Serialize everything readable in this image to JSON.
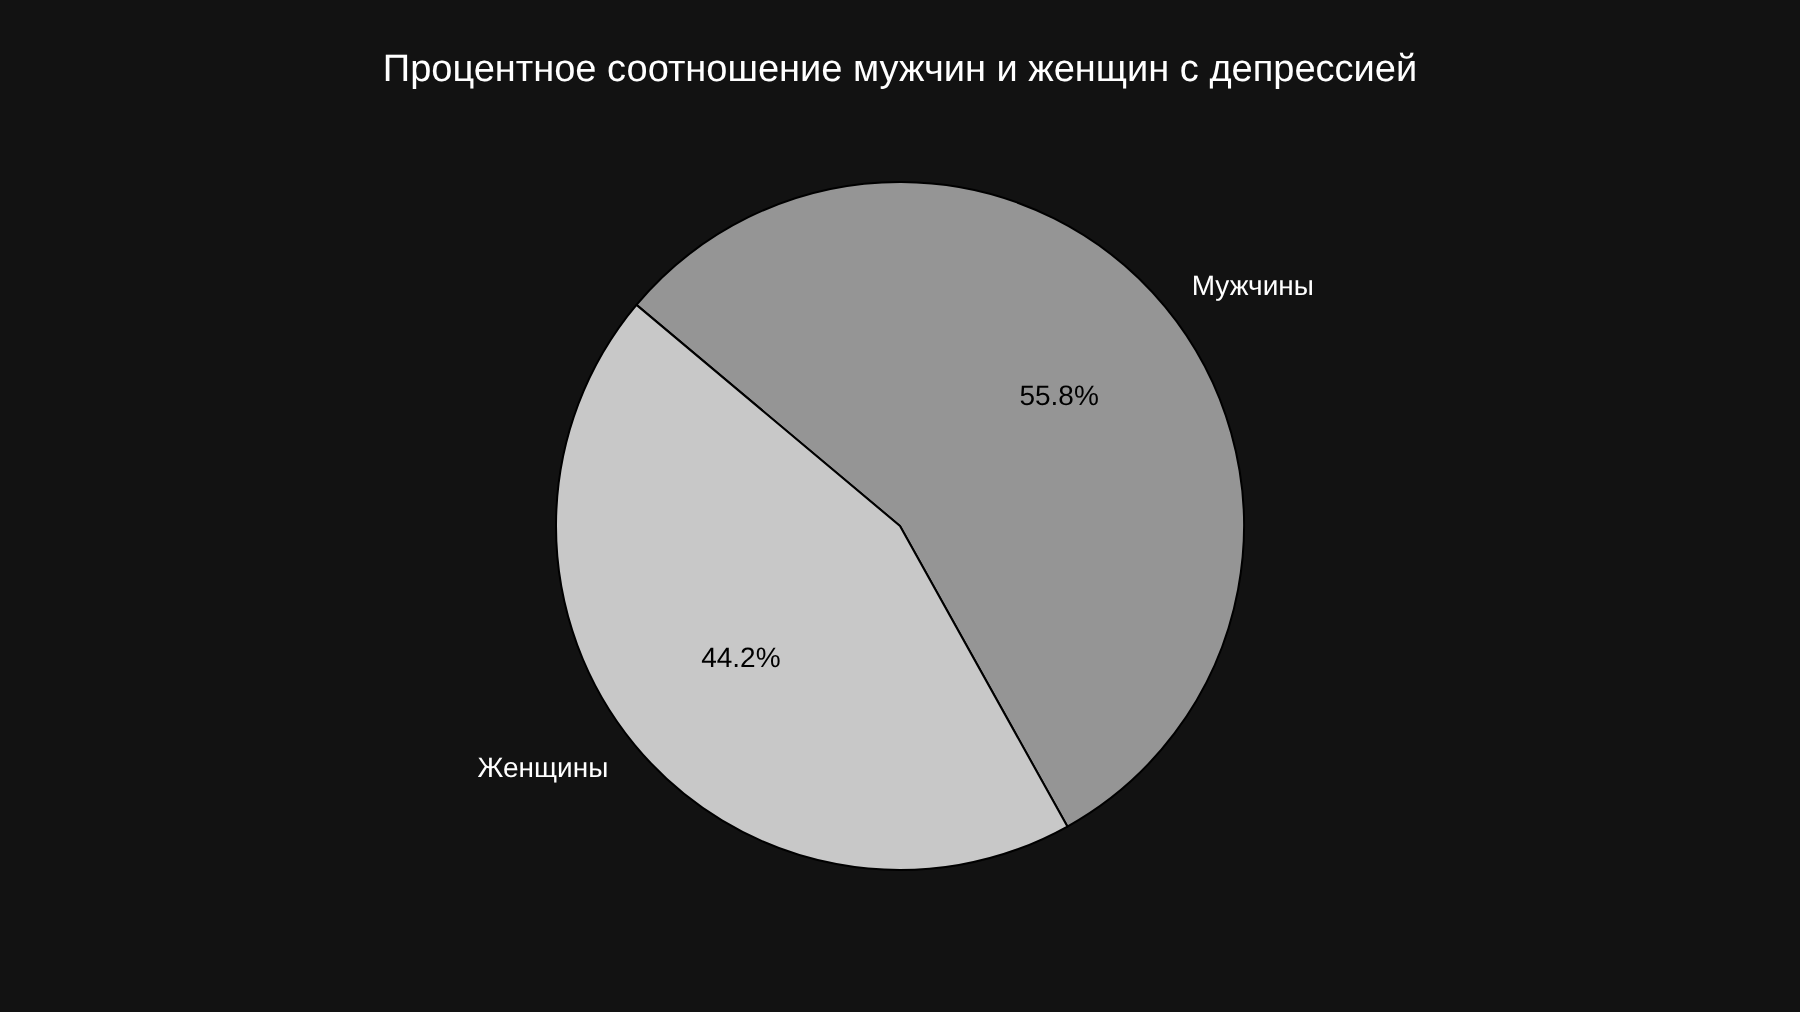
{
  "chart_data": {
    "type": "pie",
    "title": "Процентное соотношение мужчин и женщин с депрессией",
    "categories": [
      "Мужчины",
      "Женщины"
    ],
    "values": [
      55.8,
      44.2
    ],
    "colors": [
      "#959595",
      "#c8c8c8"
    ],
    "value_labels": [
      "55.8%",
      "44.2%"
    ]
  }
}
